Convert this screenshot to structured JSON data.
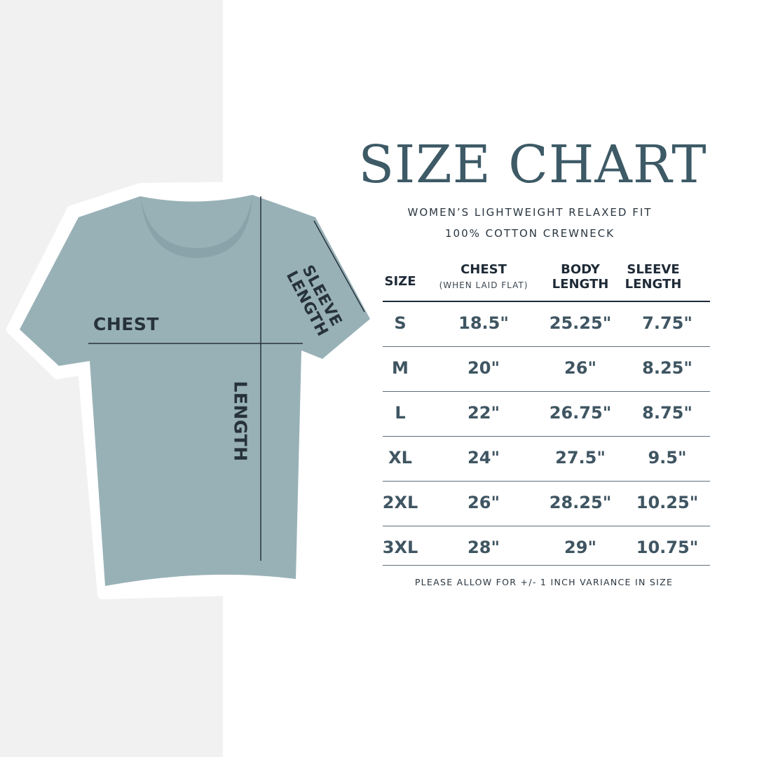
{
  "colors": {
    "shirt": "#98b1b7",
    "title": "#3d5a66",
    "values": "#3f5562",
    "left_background": "#f1f1f1"
  },
  "diagram": {
    "chest_label": "CHEST",
    "length_label": "LENGTH",
    "sleeve_label_1": "SLEEVE",
    "sleeve_label_2": "LENGTH"
  },
  "header": {
    "title": "SIZE CHART",
    "subtitle_1": "WOMEN’S LIGHTWEIGHT RELAXED FIT",
    "subtitle_2": "100% COTTON CREWNECK"
  },
  "table": {
    "columns": [
      {
        "label": "SIZE"
      },
      {
        "label": "CHEST",
        "sublabel": "(WHEN LAID FLAT)"
      },
      {
        "label_1": "BODY",
        "label_2": "LENGTH"
      },
      {
        "label_1": "SLEEVE",
        "label_2": "LENGTH"
      }
    ],
    "rows": [
      [
        "S",
        "18.5\"",
        "25.25\"",
        "7.75\""
      ],
      [
        "M",
        "20\"",
        "26\"",
        "8.25\""
      ],
      [
        "L",
        "22\"",
        "26.75\"",
        "8.75\""
      ],
      [
        "XL",
        "24\"",
        "27.5\"",
        "9.5\""
      ],
      [
        "2XL",
        "26\"",
        "28.25\"",
        "10.25\""
      ],
      [
        "3XL",
        "28\"",
        "29\"",
        "10.75\""
      ]
    ]
  },
  "footer": {
    "note": "PLEASE ALLOW FOR +/- 1 INCH VARIANCE IN SIZE"
  }
}
